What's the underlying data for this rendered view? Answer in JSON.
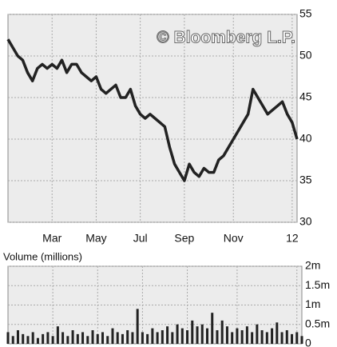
{
  "chart_data": [
    {
      "type": "line",
      "watermark": "© Bloomberg L.P.",
      "color": "#222",
      "grid": true,
      "xlim": [
        0,
        59
      ],
      "xticks": [
        {
          "value": 9,
          "label": "Mar"
        },
        {
          "value": 18,
          "label": "May"
        },
        {
          "value": 27,
          "label": "Jul"
        },
        {
          "value": 36,
          "label": "Sep"
        },
        {
          "value": 46,
          "label": "Nov"
        },
        {
          "value": 58,
          "label": "12"
        }
      ],
      "ylim": [
        30,
        55
      ],
      "yticks": [
        30,
        35,
        40,
        45,
        50,
        55
      ],
      "values": [
        52,
        51,
        50,
        49.5,
        48,
        47,
        48.5,
        49,
        48.5,
        49,
        48.5,
        49.5,
        48,
        49,
        49,
        48,
        47.5,
        47,
        47.5,
        46,
        45.5,
        46,
        46.5,
        45,
        45,
        46,
        44,
        43,
        42.5,
        43,
        42.5,
        42,
        41.5,
        39,
        37,
        36,
        35,
        37,
        36,
        35.5,
        36.5,
        36,
        36,
        37.5,
        38,
        39,
        40,
        41,
        42,
        43,
        46,
        45,
        44,
        43,
        43.5,
        44,
        44.5,
        43,
        42,
        40
      ]
    },
    {
      "type": "bar",
      "title": "Volume (millions)",
      "color": "#222",
      "grid": true,
      "xlim": [
        0,
        59
      ],
      "ylim": [
        0,
        2
      ],
      "yticks": [
        0,
        {
          "value": 0.5,
          "label": "0.5m"
        },
        {
          "value": 1,
          "label": "1m"
        },
        {
          "value": 1.5,
          "label": "1.5m"
        },
        {
          "value": 2,
          "label": "2m"
        }
      ],
      "values": [
        0.3,
        0.2,
        0.35,
        0.25,
        0.2,
        0.3,
        0.15,
        0.25,
        0.3,
        0.2,
        0.45,
        0.3,
        0.2,
        0.35,
        0.25,
        0.3,
        0.2,
        0.35,
        0.25,
        0.3,
        0.2,
        0.4,
        0.3,
        0.25,
        0.35,
        0.3,
        0.9,
        0.3,
        0.25,
        0.4,
        0.3,
        0.35,
        0.45,
        0.3,
        0.5,
        0.4,
        0.35,
        0.6,
        0.45,
        0.5,
        0.4,
        0.8,
        0.35,
        0.6,
        0.45,
        0.3,
        0.4,
        0.35,
        0.45,
        0.3,
        0.5,
        0.35,
        0.3,
        0.4,
        0.55,
        0.3,
        0.35,
        0.25,
        0.3,
        0.2
      ]
    }
  ]
}
